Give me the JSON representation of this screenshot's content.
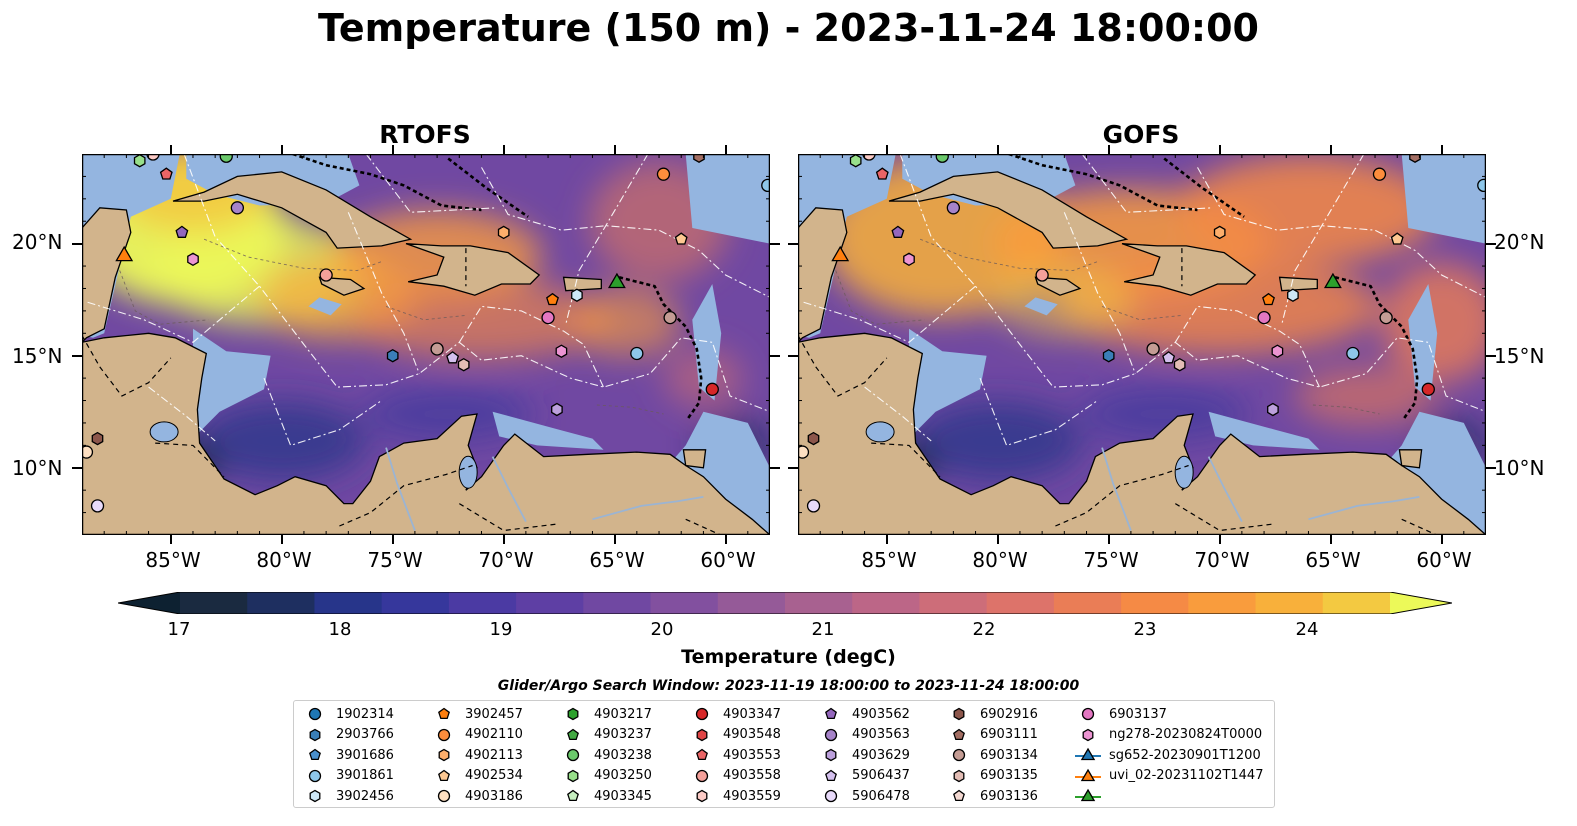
{
  "title": "Temperature (150 m) - 2023-11-24 18:00:00",
  "panels": [
    {
      "title": "RTOFS",
      "variant": "rtofs"
    },
    {
      "title": "GOFS",
      "variant": "gofs"
    }
  ],
  "lat_ticks": [
    {
      "value": 20,
      "label": "20°N"
    },
    {
      "value": 15,
      "label": "15°N"
    },
    {
      "value": 10,
      "label": "10°N"
    }
  ],
  "lon_ticks": [
    {
      "value": -85,
      "label": "85°W"
    },
    {
      "value": -80,
      "label": "80°W"
    },
    {
      "value": -75,
      "label": "75°W"
    },
    {
      "value": -70,
      "label": "70°W"
    },
    {
      "value": -65,
      "label": "65°W"
    },
    {
      "value": -60,
      "label": "60°W"
    }
  ],
  "extent": {
    "lon_min": -89,
    "lon_max": -58,
    "lat_min": 7,
    "lat_max": 24
  },
  "colorbar": {
    "label": "Temperature (degC)",
    "min": 16.5,
    "max": 25,
    "step": 0.5,
    "ticks": [
      "17",
      "18",
      "19",
      "20",
      "21",
      "22",
      "23",
      "24"
    ],
    "colors": [
      "#1a2a40",
      "#1e2f60",
      "#27358a",
      "#36379c",
      "#4b3aa3",
      "#5e3fa4",
      "#7048a2",
      "#82509f",
      "#955a98",
      "#a86190",
      "#bc6687",
      "#cd6d79",
      "#dd736a",
      "#ea7d56",
      "#f58a45",
      "#f99c3d",
      "#f8b03b",
      "#f3c941"
    ],
    "under_color": "#0d2131",
    "over_color": "#ecf959"
  },
  "search_window": "Glider/Argo Search Window: 2023-11-19 18:00:00 to 2023-11-24 18:00:00",
  "legend": [
    {
      "label": "1902314",
      "marker": "circle",
      "color": "#1f77b4"
    },
    {
      "label": "2903766",
      "marker": "hexagon",
      "color": "#3a7fb8"
    },
    {
      "label": "3901686",
      "marker": "pentagon",
      "color": "#4a90cc"
    },
    {
      "label": "3901861",
      "marker": "circle",
      "color": "#8ec7ea"
    },
    {
      "label": "3902456",
      "marker": "hexagon",
      "color": "#cde7f7"
    },
    {
      "label": "3902457",
      "marker": "pentagon",
      "color": "#ff7f0e"
    },
    {
      "label": "4902110",
      "marker": "circle",
      "color": "#fd8d3c"
    },
    {
      "label": "4902113",
      "marker": "hexagon",
      "color": "#fdae6b"
    },
    {
      "label": "4902534",
      "marker": "pentagon",
      "color": "#fdc892"
    },
    {
      "label": "4903186",
      "marker": "circle",
      "color": "#fee0c2"
    },
    {
      "label": "4903217",
      "marker": "hexagon",
      "color": "#2ca02c"
    },
    {
      "label": "4903237",
      "marker": "pentagon",
      "color": "#43a943"
    },
    {
      "label": "4903238",
      "marker": "circle",
      "color": "#6bc96b"
    },
    {
      "label": "4903250",
      "marker": "hexagon",
      "color": "#98df8a"
    },
    {
      "label": "4903345",
      "marker": "pentagon",
      "color": "#c7efc0"
    },
    {
      "label": "4903347",
      "marker": "circle",
      "color": "#d62728"
    },
    {
      "label": "4903548",
      "marker": "hexagon",
      "color": "#e04546"
    },
    {
      "label": "4903553",
      "marker": "pentagon",
      "color": "#ea6566"
    },
    {
      "label": "4903558",
      "marker": "circle",
      "color": "#f4a09a"
    },
    {
      "label": "4903559",
      "marker": "hexagon",
      "color": "#fccbc6"
    },
    {
      "label": "4903562",
      "marker": "pentagon",
      "color": "#9467bd"
    },
    {
      "label": "4903563",
      "marker": "circle",
      "color": "#a683c9"
    },
    {
      "label": "4903629",
      "marker": "hexagon",
      "color": "#bca0dc"
    },
    {
      "label": "5906437",
      "marker": "pentagon",
      "color": "#d4c0ee"
    },
    {
      "label": "5906478",
      "marker": "circle",
      "color": "#e8dafa"
    },
    {
      "label": "6902916",
      "marker": "hexagon",
      "color": "#8c564b"
    },
    {
      "label": "6903111",
      "marker": "pentagon",
      "color": "#a36e63"
    },
    {
      "label": "6903134",
      "marker": "circle",
      "color": "#c49c94"
    },
    {
      "label": "6903135",
      "marker": "hexagon",
      "color": "#e3bdb5"
    },
    {
      "label": "6903136",
      "marker": "pentagon",
      "color": "#f3d8d1"
    },
    {
      "label": "6903137",
      "marker": "circle",
      "color": "#e377c2"
    },
    {
      "label": "ng278-20230824T0000",
      "marker": "hexagon",
      "color": "#ec94d2"
    },
    {
      "label": "sg652-20230901T1200",
      "marker": "triangle-line",
      "color": "#1f77b4"
    },
    {
      "label": "uvi_02-20231102T1447",
      "marker": "triangle-line",
      "color": "#ff7f0e"
    },
    {
      "label": "",
      "marker": "triangle-line",
      "color": "#2ca02c"
    }
  ],
  "floats": [
    {
      "lon": -75,
      "lat": 15,
      "marker": "hexagon",
      "color": "#3a7fb8"
    },
    {
      "lon": -84.5,
      "lat": 20.5,
      "marker": "pentagon",
      "color": "#9467bd"
    },
    {
      "lon": -82,
      "lat": 21.6,
      "marker": "circle",
      "color": "#a683c9"
    },
    {
      "lon": -84,
      "lat": 19.3,
      "marker": "hexagon",
      "color": "#ec94d2"
    },
    {
      "lon": -78,
      "lat": 18.6,
      "marker": "circle",
      "color": "#f4a09a"
    },
    {
      "lon": -70,
      "lat": 20.5,
      "marker": "hexagon",
      "color": "#fdae6b"
    },
    {
      "lon": -68,
      "lat": 16.7,
      "marker": "circle",
      "color": "#e377c2"
    },
    {
      "lon": -67.8,
      "lat": 17.5,
      "marker": "pentagon",
      "color": "#ff7f0e"
    },
    {
      "lon": -66.7,
      "lat": 17.7,
      "marker": "hexagon",
      "color": "#cde7f7"
    },
    {
      "lon": -67.4,
      "lat": 15.2,
      "marker": "hexagon",
      "color": "#ec94d2"
    },
    {
      "lon": -73,
      "lat": 15.3,
      "marker": "circle",
      "color": "#c49c94"
    },
    {
      "lon": -72.3,
      "lat": 14.9,
      "marker": "pentagon",
      "color": "#d4c0ee"
    },
    {
      "lon": -71.8,
      "lat": 14.6,
      "marker": "hexagon",
      "color": "#e3bdb5"
    },
    {
      "lon": -67.6,
      "lat": 12.6,
      "marker": "hexagon",
      "color": "#bca0dc"
    },
    {
      "lon": -64,
      "lat": 15.1,
      "marker": "circle",
      "color": "#8ec7ea"
    },
    {
      "lon": -62.5,
      "lat": 16.7,
      "marker": "circle",
      "color": "#c49c94"
    },
    {
      "lon": -60.6,
      "lat": 13.5,
      "marker": "circle",
      "color": "#d62728"
    },
    {
      "lon": -62,
      "lat": 20.2,
      "marker": "pentagon",
      "color": "#fdc892"
    },
    {
      "lon": -62.8,
      "lat": 23.1,
      "marker": "circle",
      "color": "#fd8d3c"
    },
    {
      "lon": -58.1,
      "lat": 22.6,
      "marker": "circle",
      "color": "#8ec7ea"
    },
    {
      "lon": -61.2,
      "lat": 23.9,
      "marker": "hexagon",
      "color": "#a36e63"
    },
    {
      "lon": -88.3,
      "lat": 11.3,
      "marker": "hexagon",
      "color": "#8c564b"
    },
    {
      "lon": -88.8,
      "lat": 10.7,
      "marker": "circle",
      "color": "#fee0c2"
    },
    {
      "lon": -88.3,
      "lat": 8.3,
      "marker": "circle",
      "color": "#e8dafa"
    },
    {
      "lon": -85.2,
      "lat": 23.1,
      "marker": "pentagon",
      "color": "#ea6566"
    },
    {
      "lon": -86.4,
      "lat": 23.7,
      "marker": "hexagon",
      "color": "#98df8a"
    },
    {
      "lon": -85.8,
      "lat": 24,
      "marker": "circle",
      "color": "#fccbc6"
    },
    {
      "lon": -82.5,
      "lat": 23.9,
      "marker": "circle",
      "color": "#6bc96b"
    }
  ],
  "gliders": [
    {
      "lon": -87.1,
      "lat": 19.4,
      "color": "#ff7f0e"
    },
    {
      "lon": -64.9,
      "lat": 18.2,
      "color": "#2ca02c"
    }
  ]
}
